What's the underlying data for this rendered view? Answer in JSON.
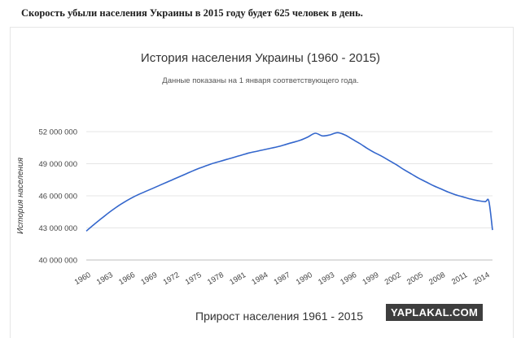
{
  "caption": "Скорость убыли населения Украины в 2015 году будет 625 человек в день.",
  "next_chart_title": "Прирост населения 1961 - 2015",
  "watermark": "YAPLAKAL.COM",
  "chart_data": {
    "type": "line",
    "title": "История населения Украины (1960 - 2015)",
    "subtitle": "Данные показаны на 1 января соответствующего года.",
    "xlabel": "",
    "ylabel": "История населения",
    "xlim": [
      1960,
      2015
    ],
    "ylim": [
      40000000,
      52000000
    ],
    "y_ticks": [
      40000000,
      43000000,
      46000000,
      49000000,
      52000000
    ],
    "y_tick_labels": [
      "40 000 000",
      "43 000 000",
      "46 000 000",
      "49 000 000",
      "52 000 000"
    ],
    "x_ticks": [
      1960,
      1963,
      1966,
      1969,
      1972,
      1975,
      1978,
      1981,
      1984,
      1987,
      1990,
      1993,
      1996,
      1999,
      2002,
      2005,
      2008,
      2011,
      2014
    ],
    "grid": true,
    "legend": "none",
    "line_color": "#3366cc",
    "series": [
      {
        "x": [
          1960,
          1961,
          1962,
          1963,
          1964,
          1965,
          1966,
          1967,
          1968,
          1969,
          1970,
          1971,
          1972,
          1973,
          1974,
          1975,
          1976,
          1977,
          1978,
          1979,
          1980,
          1981,
          1982,
          1983,
          1984,
          1985,
          1986,
          1987,
          1988,
          1989,
          1990,
          1991,
          1992,
          1993,
          1994,
          1995,
          1996,
          1997,
          1998,
          1999,
          2000,
          2001,
          2002,
          2003,
          2004,
          2005,
          2006,
          2007,
          2008,
          2009,
          2010,
          2011,
          2012,
          2013,
          2014,
          2014.5,
          2015
        ],
        "values": [
          42700000,
          43300000,
          43850000,
          44400000,
          44900000,
          45350000,
          45750000,
          46100000,
          46400000,
          46700000,
          47000000,
          47300000,
          47600000,
          47900000,
          48200000,
          48500000,
          48750000,
          49000000,
          49200000,
          49400000,
          49600000,
          49800000,
          50000000,
          50150000,
          50300000,
          50450000,
          50600000,
          50800000,
          51000000,
          51200000,
          51500000,
          51850000,
          51600000,
          51700000,
          51900000,
          51700000,
          51300000,
          50900000,
          50450000,
          50050000,
          49700000,
          49300000,
          48900000,
          48450000,
          48050000,
          47650000,
          47300000,
          46950000,
          46650000,
          46350000,
          46100000,
          45900000,
          45700000,
          45550000,
          45450000,
          45500000,
          42800000
        ]
      }
    ]
  }
}
